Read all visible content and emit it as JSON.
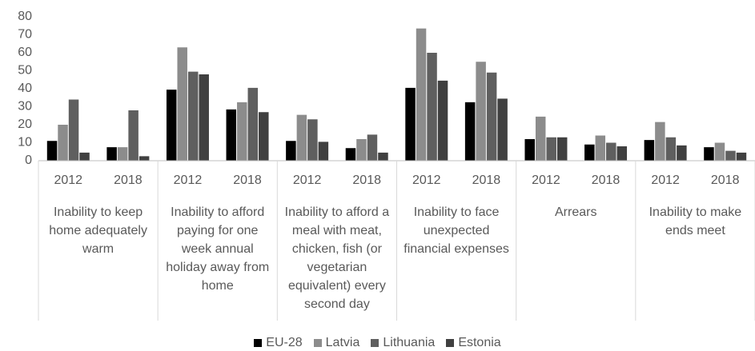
{
  "chart_data": {
    "type": "bar",
    "categories": [
      "2012",
      "2018",
      "2012",
      "2018",
      "2012",
      "2018",
      "2012",
      "2018",
      "2012",
      "2018",
      "2012",
      "2018"
    ],
    "groups": [
      "Inability to keep home adequately warm",
      "Inability to afford paying for one week annual holiday away from home",
      "Inability to afford a meal with meat, chicken, fish (or vegetarian equivalent) every second day",
      "Inability to face unexpected financial expenses",
      "Arrears",
      "Inability to make ends meet"
    ],
    "series": [
      {
        "name": "EU-28",
        "color": "#000000",
        "values": [
          11,
          7.5,
          39.5,
          28.5,
          11,
          7,
          40.5,
          32.5,
          12,
          9,
          11.5,
          7.5
        ]
      },
      {
        "name": "Latvia",
        "color": "#8c8c8c",
        "values": [
          20,
          7.5,
          63,
          32.5,
          25.5,
          12,
          73.5,
          55,
          24.5,
          14,
          21.5,
          10
        ]
      },
      {
        "name": "Lithuania",
        "color": "#5f5f5f",
        "values": [
          34,
          28,
          49.5,
          40.5,
          23,
          14.5,
          60,
          49,
          13,
          10,
          13,
          5.5
        ]
      },
      {
        "name": "Estonia",
        "color": "#404040",
        "values": [
          4.5,
          2.5,
          48,
          27,
          10.5,
          4.5,
          44.5,
          34.5,
          13,
          8,
          8.5,
          4.5
        ]
      }
    ],
    "ylim": [
      0,
      80
    ],
    "yticks": [
      0,
      10,
      20,
      30,
      40,
      50,
      60,
      70,
      80
    ],
    "grid": false,
    "legend": "bottom"
  }
}
